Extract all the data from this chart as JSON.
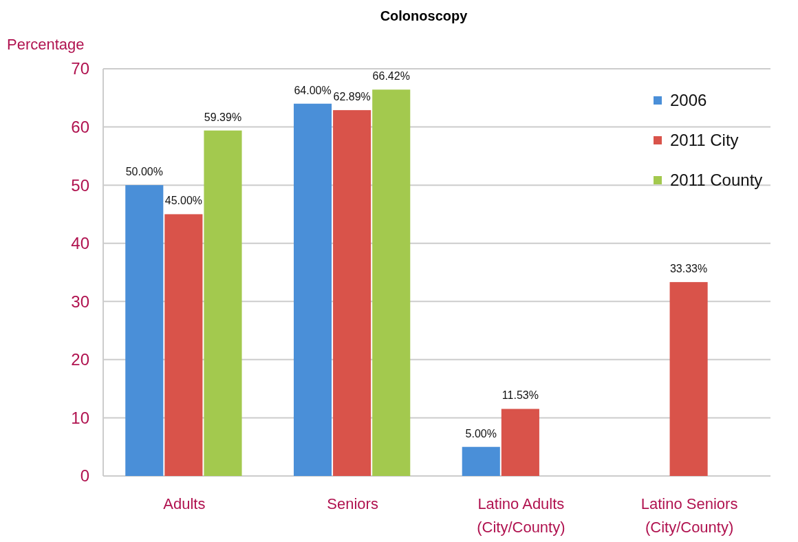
{
  "chart_data": {
    "type": "bar",
    "title": "Colonoscopy",
    "ylabel": "Percentage",
    "categories": [
      "Adults",
      "Seniors",
      "Latino Adults (City/County)",
      "Latino Seniors (City/County)"
    ],
    "series": [
      {
        "name": "2006",
        "color": "#4a8fd8",
        "values": [
          50,
          64,
          5,
          null
        ],
        "value_labels": [
          "50.00%",
          "64.00%",
          "5.00%",
          null
        ]
      },
      {
        "name": "2011 City",
        "color": "#d9534a",
        "values": [
          45,
          62.89,
          11.53,
          33.33
        ],
        "value_labels": [
          "45.00%",
          "62.89%",
          "11.53%",
          "33.33%"
        ]
      },
      {
        "name": "2011 County",
        "color": "#a3c94e",
        "values": [
          59.39,
          66.42,
          null,
          null
        ],
        "value_labels": [
          "59.39%",
          "66.42%",
          null,
          null
        ]
      }
    ],
    "ylim": [
      0,
      70
    ],
    "yticks": [
      0,
      10,
      20,
      30,
      40,
      50,
      60,
      70
    ],
    "grid": "y",
    "legend": "top right"
  }
}
